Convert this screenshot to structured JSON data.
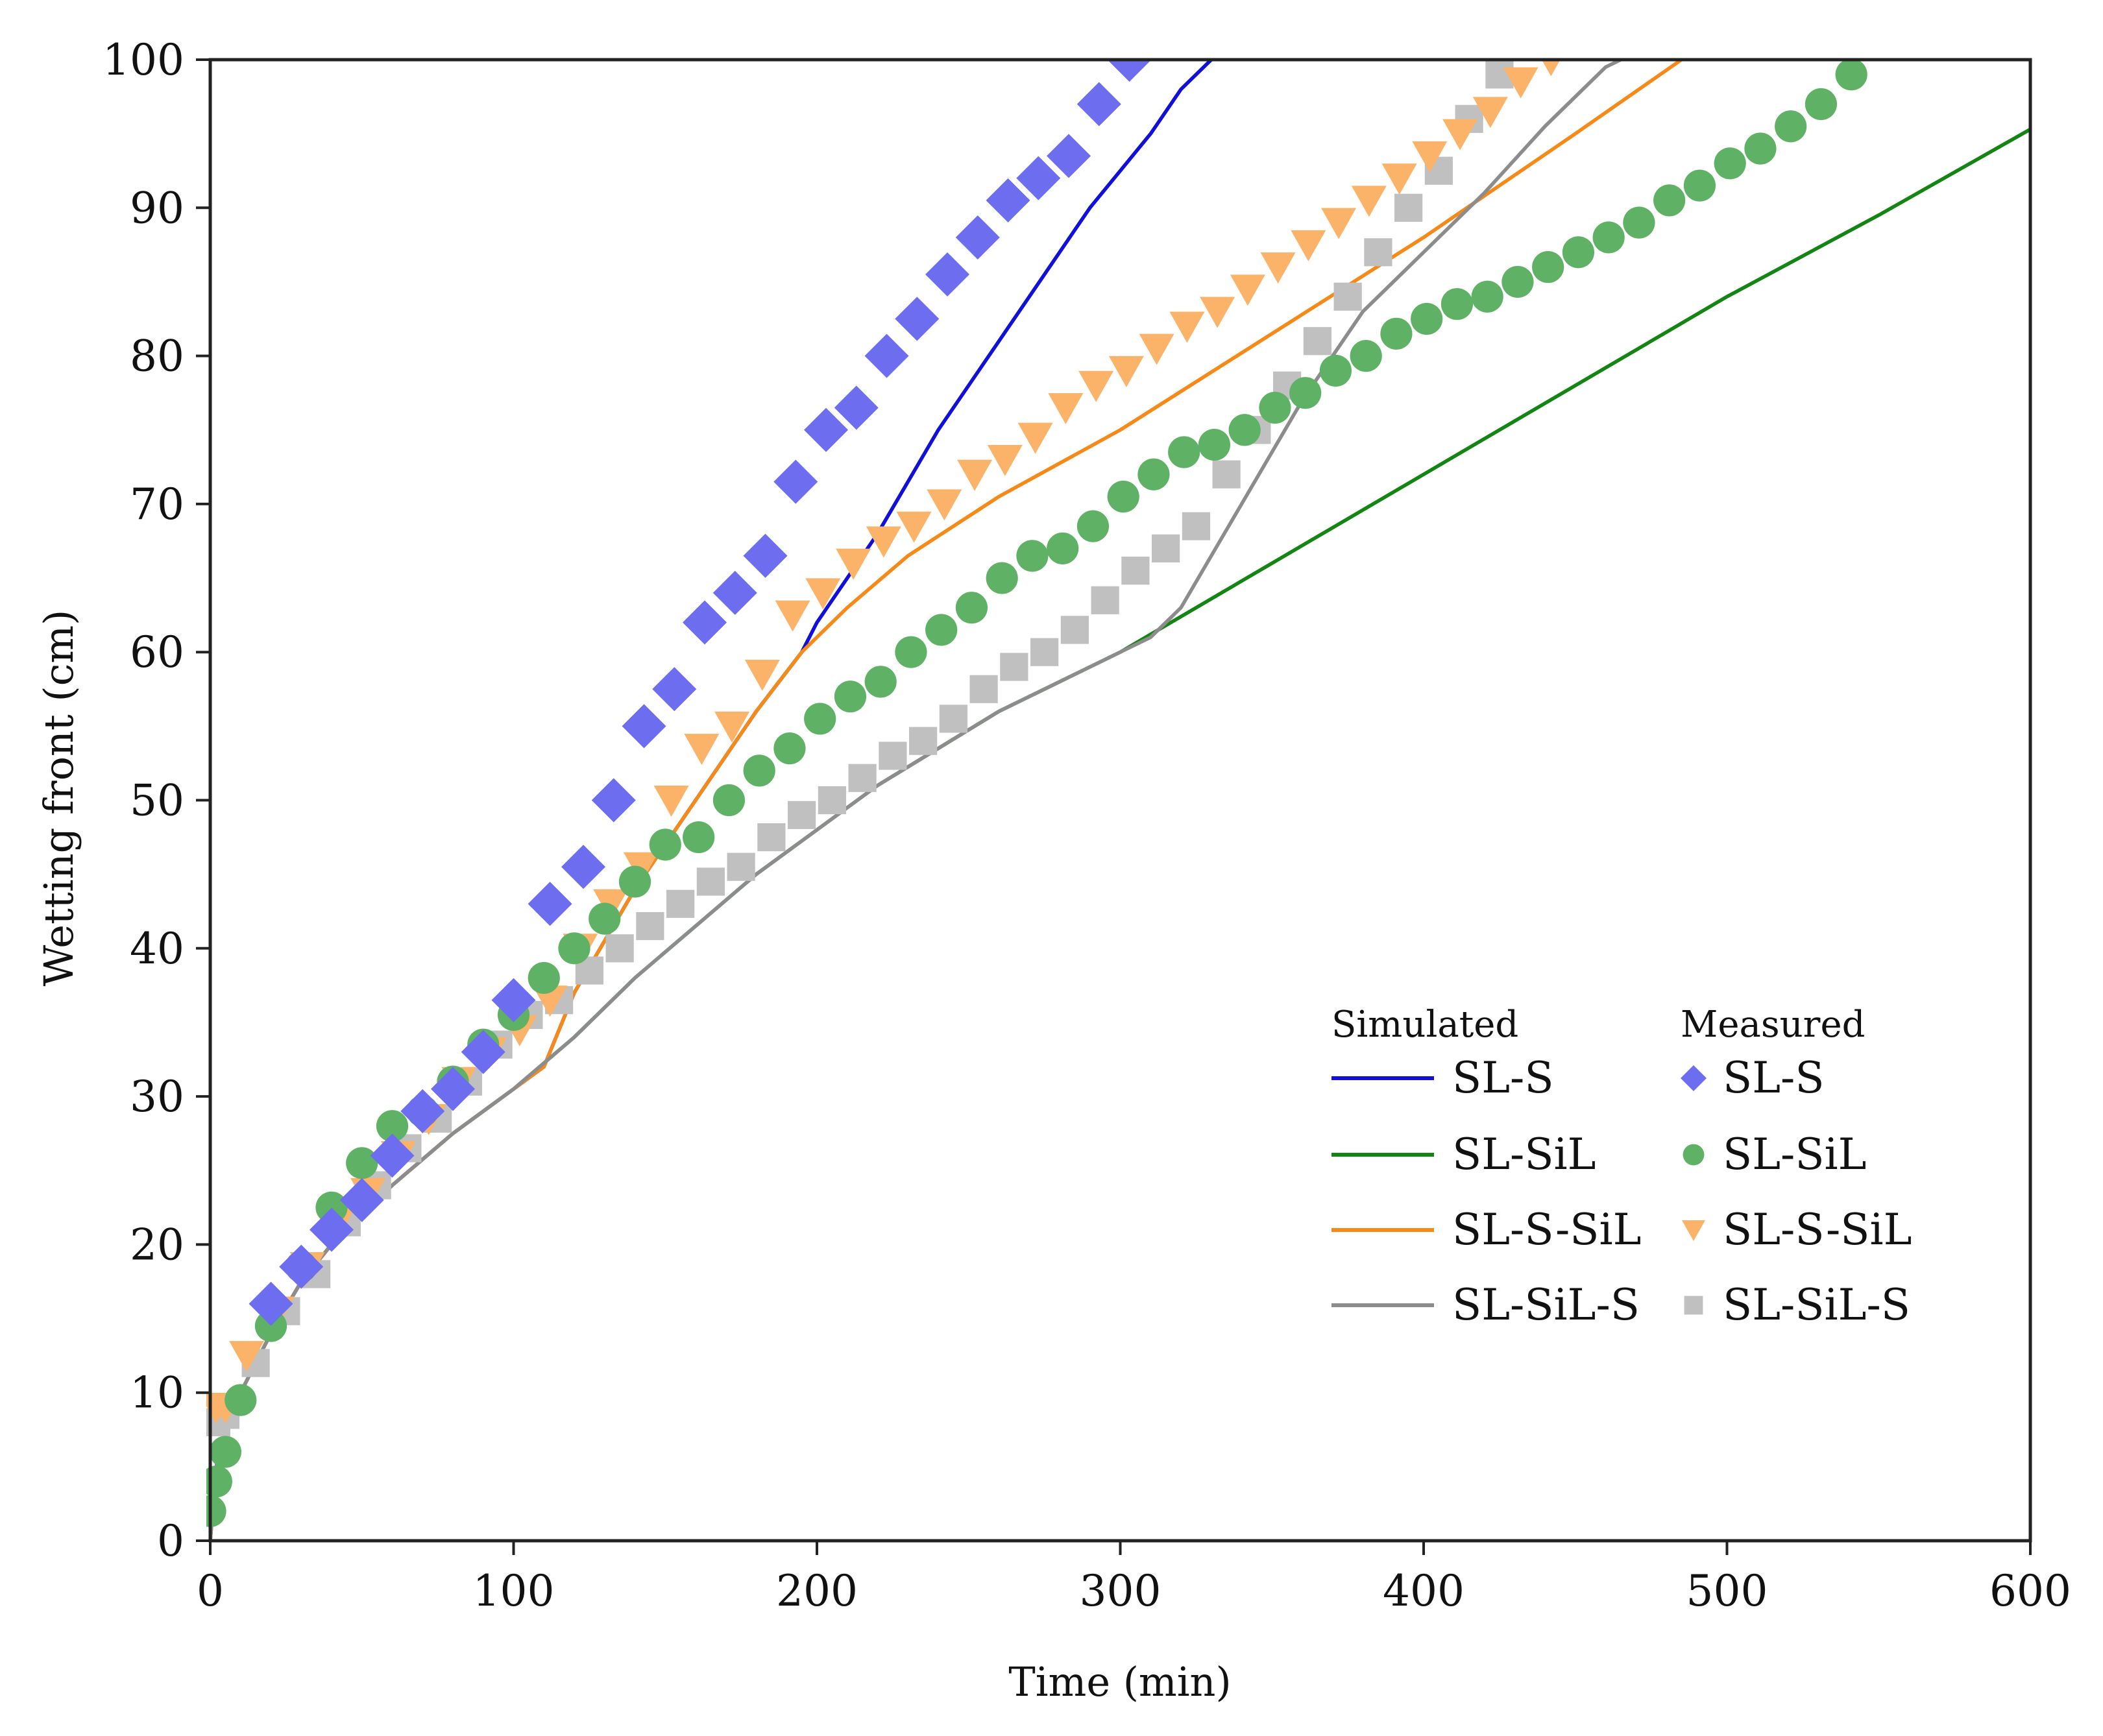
{
  "chart_data": {
    "type": "line",
    "title": "",
    "xlabel": "Time (min)",
    "ylabel": "Wetting front (cm)",
    "xlim": [
      0,
      600
    ],
    "ylim": [
      0,
      100
    ],
    "xticks": [
      "0",
      "100",
      "200",
      "300",
      "400",
      "500",
      "600"
    ],
    "yticks": [
      "0",
      "10",
      "20",
      "30",
      "40",
      "50",
      "60",
      "70",
      "80",
      "90",
      "100"
    ],
    "grid": false,
    "legend": {
      "placement": "lower-right",
      "simulated_header": "Simulated",
      "measured_header": "Measured"
    },
    "simulated": [
      {
        "name": "SL-S",
        "color": "#1010d8",
        "x": [
          0,
          2,
          5,
          10,
          20,
          30,
          40,
          60,
          80,
          100,
          110,
          120,
          140,
          160,
          180,
          195,
          200,
          210,
          220,
          230,
          240,
          250,
          260,
          270,
          280,
          290,
          300,
          310,
          320,
          330
        ],
        "y": [
          0,
          5,
          7.5,
          10,
          14,
          17.5,
          20,
          24,
          27.5,
          30.5,
          32,
          37,
          44,
          50,
          56,
          60,
          62,
          65,
          68,
          71.5,
          75,
          78,
          81,
          84,
          87,
          90,
          92.5,
          95,
          98,
          100
        ]
      },
      {
        "name": "SL-SiL",
        "color": "#138513",
        "x": [
          0,
          2,
          5,
          10,
          20,
          30,
          40,
          60,
          80,
          100,
          120,
          140,
          160,
          180,
          200,
          220,
          240,
          260,
          280,
          300,
          350,
          400,
          450,
          500,
          550,
          600
        ],
        "y": [
          0,
          5,
          7.5,
          10,
          14,
          17.5,
          20,
          24,
          27.5,
          30.5,
          34,
          38,
          41.5,
          45,
          48,
          51,
          53.5,
          56,
          58,
          60,
          66,
          72,
          78,
          84,
          89.5,
          95.3
        ]
      },
      {
        "name": "SL-S-SiL",
        "color": "#f58a18",
        "x": [
          0,
          2,
          5,
          10,
          20,
          30,
          40,
          60,
          80,
          100,
          110,
          120,
          140,
          160,
          180,
          195,
          210,
          230,
          260,
          300,
          350,
          400,
          450,
          485
        ],
        "y": [
          0,
          5,
          7.5,
          10,
          14,
          17.5,
          20,
          24,
          27.5,
          30.5,
          32,
          37,
          44,
          50,
          56,
          60,
          63,
          66.5,
          70.5,
          75,
          81.5,
          88,
          95,
          100
        ]
      },
      {
        "name": "SL-SiL-S",
        "color": "#8c8c8c",
        "x": [
          0,
          2,
          5,
          10,
          20,
          30,
          40,
          60,
          80,
          100,
          120,
          140,
          160,
          180,
          200,
          220,
          240,
          260,
          280,
          300,
          310,
          320,
          340,
          360,
          380,
          400,
          420,
          440,
          460,
          465
        ],
        "y": [
          0,
          5,
          7.5,
          10,
          14,
          17.5,
          20,
          24,
          27.5,
          30.5,
          34,
          38,
          41.5,
          45,
          48,
          51,
          53.5,
          56,
          58,
          60,
          61,
          63,
          70,
          77,
          83,
          87,
          91,
          95.5,
          99.5,
          100
        ]
      }
    ],
    "measured": [
      {
        "name": "SL-S",
        "color": "#6d6df0",
        "marker": "diamond",
        "x": [
          20,
          30,
          40,
          50,
          60,
          70,
          80,
          90,
          100,
          112,
          123,
          133,
          143,
          153,
          163,
          173,
          183,
          193,
          203,
          213,
          223,
          233,
          243,
          253,
          263,
          273,
          283,
          293,
          303
        ],
        "y": [
          16,
          18.5,
          21,
          23,
          26,
          29,
          30.5,
          33,
          36.5,
          43,
          45.5,
          50,
          55,
          57.5,
          62,
          64,
          66.5,
          71.5,
          75,
          76.5,
          80,
          82.5,
          85.5,
          88,
          90.5,
          92,
          93.5,
          97,
          100
        ]
      },
      {
        "name": "SL-SiL",
        "color": "#5fb265",
        "marker": "circle",
        "x": [
          0,
          2,
          5,
          10,
          20,
          30,
          40,
          50,
          60,
          70,
          80,
          90,
          100,
          110,
          120,
          130,
          140,
          150,
          161,
          171,
          181,
          191,
          201,
          211,
          221,
          231,
          241,
          251,
          261,
          271,
          281,
          291,
          301,
          311,
          321,
          331,
          341,
          351,
          361,
          371,
          381,
          391,
          401,
          411,
          421,
          431,
          441,
          451,
          461,
          471,
          481,
          491,
          501,
          511,
          521,
          531,
          541
        ],
        "y": [
          2,
          4,
          6,
          9.5,
          14.5,
          18.5,
          22.5,
          25.5,
          28,
          29,
          31,
          33.5,
          35.5,
          38,
          40,
          42,
          44.5,
          47,
          47.5,
          50,
          52,
          53.5,
          55.5,
          57,
          58,
          60,
          61.5,
          63,
          65,
          66.5,
          67,
          68.5,
          70.5,
          72,
          73.5,
          74,
          75,
          76.5,
          77.5,
          79,
          80,
          81.5,
          82.5,
          83.5,
          84,
          85,
          86,
          87,
          88,
          89,
          90.5,
          91.5,
          93,
          94,
          95.5,
          97,
          99
        ]
      },
      {
        "name": "SL-S-SiL",
        "color": "#fab368",
        "marker": "triangle-down",
        "x": [
          2,
          5,
          12,
          22,
          32,
          42,
          52,
          62,
          72,
          82,
          92,
          102,
          112,
          122,
          132,
          142,
          152,
          162,
          172,
          182,
          192,
          202,
          212,
          222,
          232,
          242,
          252,
          262,
          272,
          282,
          292,
          302,
          312,
          322,
          332,
          342,
          352,
          362,
          372,
          382,
          392,
          402,
          412,
          422,
          432,
          442
        ],
        "y": [
          9,
          9,
          12.5,
          15.5,
          18.5,
          21.5,
          23.5,
          26,
          28.5,
          31,
          33,
          34.5,
          36.5,
          40,
          43,
          45.5,
          50,
          53.5,
          55,
          58.5,
          62.5,
          64,
          66,
          67.5,
          68.5,
          70,
          72,
          73,
          74.5,
          76.5,
          78,
          79,
          80.5,
          82,
          83,
          84.5,
          86,
          87.5,
          89,
          90.5,
          92,
          93.5,
          95,
          96.5,
          98.5,
          100
        ]
      },
      {
        "name": "SL-SiL-S",
        "color": "#c0c0c0",
        "marker": "square",
        "x": [
          2,
          5,
          15,
          25,
          35,
          45,
          55,
          65,
          75,
          85,
          95,
          105,
          115,
          125,
          135,
          145,
          155,
          165,
          175,
          185,
          195,
          205,
          215,
          225,
          235,
          245,
          255,
          265,
          275,
          285,
          295,
          305,
          315,
          325,
          335,
          345,
          355,
          365,
          375,
          385,
          395,
          405,
          415,
          425
        ],
        "y": [
          8,
          8.5,
          12,
          15.5,
          18,
          21.5,
          24,
          26.5,
          28.5,
          31,
          33.5,
          35.5,
          36.5,
          38.5,
          40,
          41.5,
          43,
          44.5,
          45.5,
          47.5,
          49,
          50,
          51.5,
          53,
          54,
          55.5,
          57.5,
          59,
          60,
          61.5,
          63.5,
          65.5,
          67,
          68.5,
          72,
          75,
          78,
          81,
          84,
          87,
          90,
          92.5,
          96,
          99
        ]
      }
    ]
  }
}
